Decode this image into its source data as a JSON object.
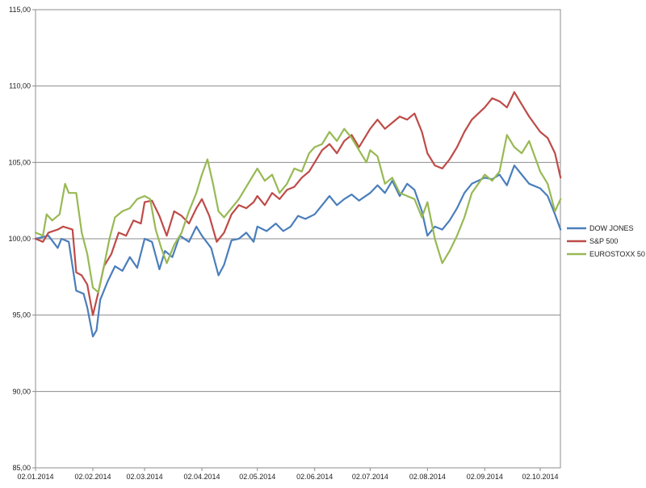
{
  "chart_data": {
    "type": "line",
    "title": "",
    "xlabel": "",
    "ylabel": "",
    "ylim": [
      85,
      115
    ],
    "y_ticks": [
      "85,00",
      "90,00",
      "95,00",
      "100,00",
      "105,00",
      "110,00",
      "115,00"
    ],
    "x_ticks": [
      "02.01.2014",
      "02.02.2014",
      "02.03.2014",
      "02.04.2014",
      "02.05.2014",
      "02.06.2014",
      "02.07.2014",
      "02.08.2014",
      "02.09.2014",
      "02.10.2014"
    ],
    "grid": "horizontal",
    "legend_position": "right",
    "series": [
      {
        "name": "DOW JONES",
        "color": "#4a7ebb",
        "points": [
          [
            "02.01.2014",
            100.0
          ],
          [
            "09.01.2014",
            100.2
          ],
          [
            "14.01.2014",
            99.4
          ],
          [
            "16.01.2014",
            100.0
          ],
          [
            "20.01.2014",
            99.8
          ],
          [
            "24.01.2014",
            96.6
          ],
          [
            "28.01.2014",
            96.4
          ],
          [
            "30.01.2014",
            95.5
          ],
          [
            "02.02.2014",
            93.6
          ],
          [
            "04.02.2014",
            94.0
          ],
          [
            "06.02.2014",
            96.0
          ],
          [
            "10.02.2014",
            97.2
          ],
          [
            "14.02.2014",
            98.2
          ],
          [
            "18.02.2014",
            97.9
          ],
          [
            "22.02.2014",
            98.8
          ],
          [
            "26.02.2014",
            98.1
          ],
          [
            "02.03.2014",
            100.0
          ],
          [
            "06.03.2014",
            99.8
          ],
          [
            "10.03.2014",
            98.0
          ],
          [
            "13.03.2014",
            99.2
          ],
          [
            "17.03.2014",
            98.8
          ],
          [
            "21.03.2014",
            100.2
          ],
          [
            "26.03.2014",
            99.8
          ],
          [
            "30.03.2014",
            100.8
          ],
          [
            "02.04.2014",
            100.2
          ],
          [
            "07.04.2014",
            99.4
          ],
          [
            "11.04.2014",
            97.6
          ],
          [
            "14.04.2014",
            98.3
          ],
          [
            "18.04.2014",
            99.9
          ],
          [
            "22.04.2014",
            100.0
          ],
          [
            "26.04.2014",
            100.4
          ],
          [
            "30.04.2014",
            99.8
          ],
          [
            "02.05.2014",
            100.8
          ],
          [
            "07.05.2014",
            100.5
          ],
          [
            "12.05.2014",
            101.0
          ],
          [
            "16.05.2014",
            100.5
          ],
          [
            "20.05.2014",
            100.8
          ],
          [
            "24.05.2014",
            101.5
          ],
          [
            "28.05.2014",
            101.3
          ],
          [
            "02.06.2014",
            101.6
          ],
          [
            "06.06.2014",
            102.2
          ],
          [
            "10.06.2014",
            102.8
          ],
          [
            "14.06.2014",
            102.2
          ],
          [
            "18.06.2014",
            102.6
          ],
          [
            "22.06.2014",
            102.9
          ],
          [
            "26.06.2014",
            102.5
          ],
          [
            "02.07.2014",
            103.0
          ],
          [
            "06.07.2014",
            103.5
          ],
          [
            "10.07.2014",
            103.0
          ],
          [
            "14.07.2014",
            103.8
          ],
          [
            "18.07.2014",
            102.8
          ],
          [
            "22.07.2014",
            103.6
          ],
          [
            "26.07.2014",
            103.2
          ],
          [
            "30.07.2014",
            101.8
          ],
          [
            "02.08.2014",
            100.2
          ],
          [
            "06.08.2014",
            100.8
          ],
          [
            "10.08.2014",
            100.6
          ],
          [
            "14.08.2014",
            101.2
          ],
          [
            "18.08.2014",
            102.0
          ],
          [
            "22.08.2014",
            103.0
          ],
          [
            "26.08.2014",
            103.6
          ],
          [
            "02.09.2014",
            104.0
          ],
          [
            "06.09.2014",
            103.9
          ],
          [
            "10.09.2014",
            104.2
          ],
          [
            "14.09.2014",
            103.5
          ],
          [
            "18.09.2014",
            104.8
          ],
          [
            "22.09.2014",
            104.2
          ],
          [
            "26.09.2014",
            103.6
          ],
          [
            "02.10.2014",
            103.3
          ],
          [
            "06.10.2014",
            102.8
          ],
          [
            "10.10.2014",
            101.6
          ],
          [
            "13.10.2014",
            100.6
          ]
        ]
      },
      {
        "name": "S&P 500",
        "color": "#be4b48",
        "points": [
          [
            "02.01.2014",
            100.0
          ],
          [
            "06.01.2014",
            99.8
          ],
          [
            "09.01.2014",
            100.4
          ],
          [
            "14.01.2014",
            100.6
          ],
          [
            "17.01.2014",
            100.8
          ],
          [
            "22.01.2014",
            100.6
          ],
          [
            "24.01.2014",
            97.8
          ],
          [
            "27.01.2014",
            97.6
          ],
          [
            "30.01.2014",
            97.0
          ],
          [
            "02.02.2014",
            95.0
          ],
          [
            "05.02.2014",
            96.5
          ],
          [
            "08.02.2014",
            98.2
          ],
          [
            "12.02.2014",
            99.0
          ],
          [
            "16.02.2014",
            100.4
          ],
          [
            "20.02.2014",
            100.2
          ],
          [
            "24.02.2014",
            101.2
          ],
          [
            "28.02.2014",
            101.0
          ],
          [
            "02.03.2014",
            102.4
          ],
          [
            "06.03.2014",
            102.5
          ],
          [
            "10.03.2014",
            101.5
          ],
          [
            "14.03.2014",
            100.2
          ],
          [
            "18.03.2014",
            101.8
          ],
          [
            "22.03.2014",
            101.5
          ],
          [
            "26.03.2014",
            101.0
          ],
          [
            "30.03.2014",
            102.0
          ],
          [
            "02.04.2014",
            102.6
          ],
          [
            "06.04.2014",
            101.5
          ],
          [
            "10.04.2014",
            99.8
          ],
          [
            "14.04.2014",
            100.4
          ],
          [
            "18.04.2014",
            101.6
          ],
          [
            "22.04.2014",
            102.2
          ],
          [
            "26.04.2014",
            102.0
          ],
          [
            "30.04.2014",
            102.4
          ],
          [
            "02.05.2014",
            102.8
          ],
          [
            "06.05.2014",
            102.2
          ],
          [
            "10.05.2014",
            103.0
          ],
          [
            "14.05.2014",
            102.6
          ],
          [
            "18.05.2014",
            103.2
          ],
          [
            "22.05.2014",
            103.4
          ],
          [
            "26.05.2014",
            104.0
          ],
          [
            "30.05.2014",
            104.4
          ],
          [
            "02.06.2014",
            105.0
          ],
          [
            "06.06.2014",
            105.8
          ],
          [
            "10.06.2014",
            106.2
          ],
          [
            "14.06.2014",
            105.6
          ],
          [
            "18.06.2014",
            106.4
          ],
          [
            "22.06.2014",
            106.8
          ],
          [
            "26.06.2014",
            106.0
          ],
          [
            "02.07.2014",
            107.2
          ],
          [
            "06.07.2014",
            107.8
          ],
          [
            "10.07.2014",
            107.2
          ],
          [
            "14.07.2014",
            107.6
          ],
          [
            "18.07.2014",
            108.0
          ],
          [
            "22.07.2014",
            107.8
          ],
          [
            "26.07.2014",
            108.2
          ],
          [
            "30.07.2014",
            107.0
          ],
          [
            "02.08.2014",
            105.6
          ],
          [
            "06.08.2014",
            104.8
          ],
          [
            "10.08.2014",
            104.6
          ],
          [
            "14.08.2014",
            105.2
          ],
          [
            "18.08.2014",
            106.0
          ],
          [
            "22.08.2014",
            107.0
          ],
          [
            "26.08.2014",
            107.8
          ],
          [
            "02.09.2014",
            108.6
          ],
          [
            "06.09.2014",
            109.2
          ],
          [
            "10.09.2014",
            109.0
          ],
          [
            "14.09.2014",
            108.6
          ],
          [
            "18.09.2014",
            109.6
          ],
          [
            "22.09.2014",
            108.8
          ],
          [
            "26.09.2014",
            108.0
          ],
          [
            "02.10.2014",
            107.0
          ],
          [
            "06.10.2014",
            106.6
          ],
          [
            "10.10.2014",
            105.6
          ],
          [
            "13.10.2014",
            104.0
          ]
        ]
      },
      {
        "name": "EUROSTOXX 50",
        "color": "#98b954",
        "points": [
          [
            "02.01.2014",
            100.4
          ],
          [
            "06.01.2014",
            100.2
          ],
          [
            "08.01.2014",
            101.6
          ],
          [
            "11.01.2014",
            101.2
          ],
          [
            "15.01.2014",
            101.6
          ],
          [
            "18.01.2014",
            103.6
          ],
          [
            "20.01.2014",
            103.0
          ],
          [
            "24.01.2014",
            103.0
          ],
          [
            "27.01.2014",
            100.4
          ],
          [
            "30.01.2014",
            99.0
          ],
          [
            "02.02.2014",
            96.8
          ],
          [
            "05.02.2014",
            96.5
          ],
          [
            "08.02.2014",
            98.2
          ],
          [
            "11.02.2014",
            100.0
          ],
          [
            "14.02.2014",
            101.4
          ],
          [
            "18.02.2014",
            101.8
          ],
          [
            "22.02.2014",
            102.0
          ],
          [
            "26.02.2014",
            102.6
          ],
          [
            "02.03.2014",
            102.8
          ],
          [
            "05.03.2014",
            102.6
          ],
          [
            "08.03.2014",
            100.6
          ],
          [
            "11.03.2014",
            99.4
          ],
          [
            "14.03.2014",
            98.4
          ],
          [
            "18.03.2014",
            99.6
          ],
          [
            "22.03.2014",
            100.4
          ],
          [
            "26.03.2014",
            101.8
          ],
          [
            "30.03.2014",
            103.0
          ],
          [
            "02.04.2014",
            104.2
          ],
          [
            "05.04.2014",
            105.2
          ],
          [
            "08.04.2014",
            103.6
          ],
          [
            "11.04.2014",
            101.8
          ],
          [
            "14.04.2014",
            101.4
          ],
          [
            "18.04.2014",
            102.0
          ],
          [
            "22.04.2014",
            102.6
          ],
          [
            "26.04.2014",
            103.4
          ],
          [
            "30.04.2014",
            104.2
          ],
          [
            "02.05.2014",
            104.6
          ],
          [
            "06.05.2014",
            103.8
          ],
          [
            "10.05.2014",
            104.2
          ],
          [
            "14.05.2014",
            103.0
          ],
          [
            "18.05.2014",
            103.6
          ],
          [
            "22.05.2014",
            104.6
          ],
          [
            "26.05.2014",
            104.4
          ],
          [
            "30.05.2014",
            105.6
          ],
          [
            "02.06.2014",
            106.0
          ],
          [
            "06.06.2014",
            106.2
          ],
          [
            "10.06.2014",
            107.0
          ],
          [
            "14.06.2014",
            106.4
          ],
          [
            "18.06.2014",
            107.2
          ],
          [
            "22.06.2014",
            106.6
          ],
          [
            "26.06.2014",
            105.8
          ],
          [
            "30.06.2014",
            105.0
          ],
          [
            "02.07.2014",
            105.8
          ],
          [
            "06.07.2014",
            105.4
          ],
          [
            "10.07.2014",
            103.6
          ],
          [
            "14.07.2014",
            104.0
          ],
          [
            "18.07.2014",
            103.0
          ],
          [
            "22.07.2014",
            102.8
          ],
          [
            "26.07.2014",
            102.6
          ],
          [
            "30.07.2014",
            101.4
          ],
          [
            "02.08.2014",
            102.4
          ],
          [
            "06.08.2014",
            100.0
          ],
          [
            "10.08.2014",
            98.4
          ],
          [
            "14.08.2014",
            99.2
          ],
          [
            "18.08.2014",
            100.2
          ],
          [
            "22.08.2014",
            101.4
          ],
          [
            "26.08.2014",
            103.0
          ],
          [
            "02.09.2014",
            104.2
          ],
          [
            "06.09.2014",
            103.8
          ],
          [
            "10.09.2014",
            104.4
          ],
          [
            "14.09.2014",
            106.8
          ],
          [
            "18.09.2014",
            106.0
          ],
          [
            "22.09.2014",
            105.6
          ],
          [
            "26.09.2014",
            106.4
          ],
          [
            "02.10.2014",
            104.4
          ],
          [
            "06.10.2014",
            103.6
          ],
          [
            "10.10.2014",
            101.8
          ],
          [
            "13.10.2014",
            102.6
          ]
        ]
      }
    ]
  }
}
